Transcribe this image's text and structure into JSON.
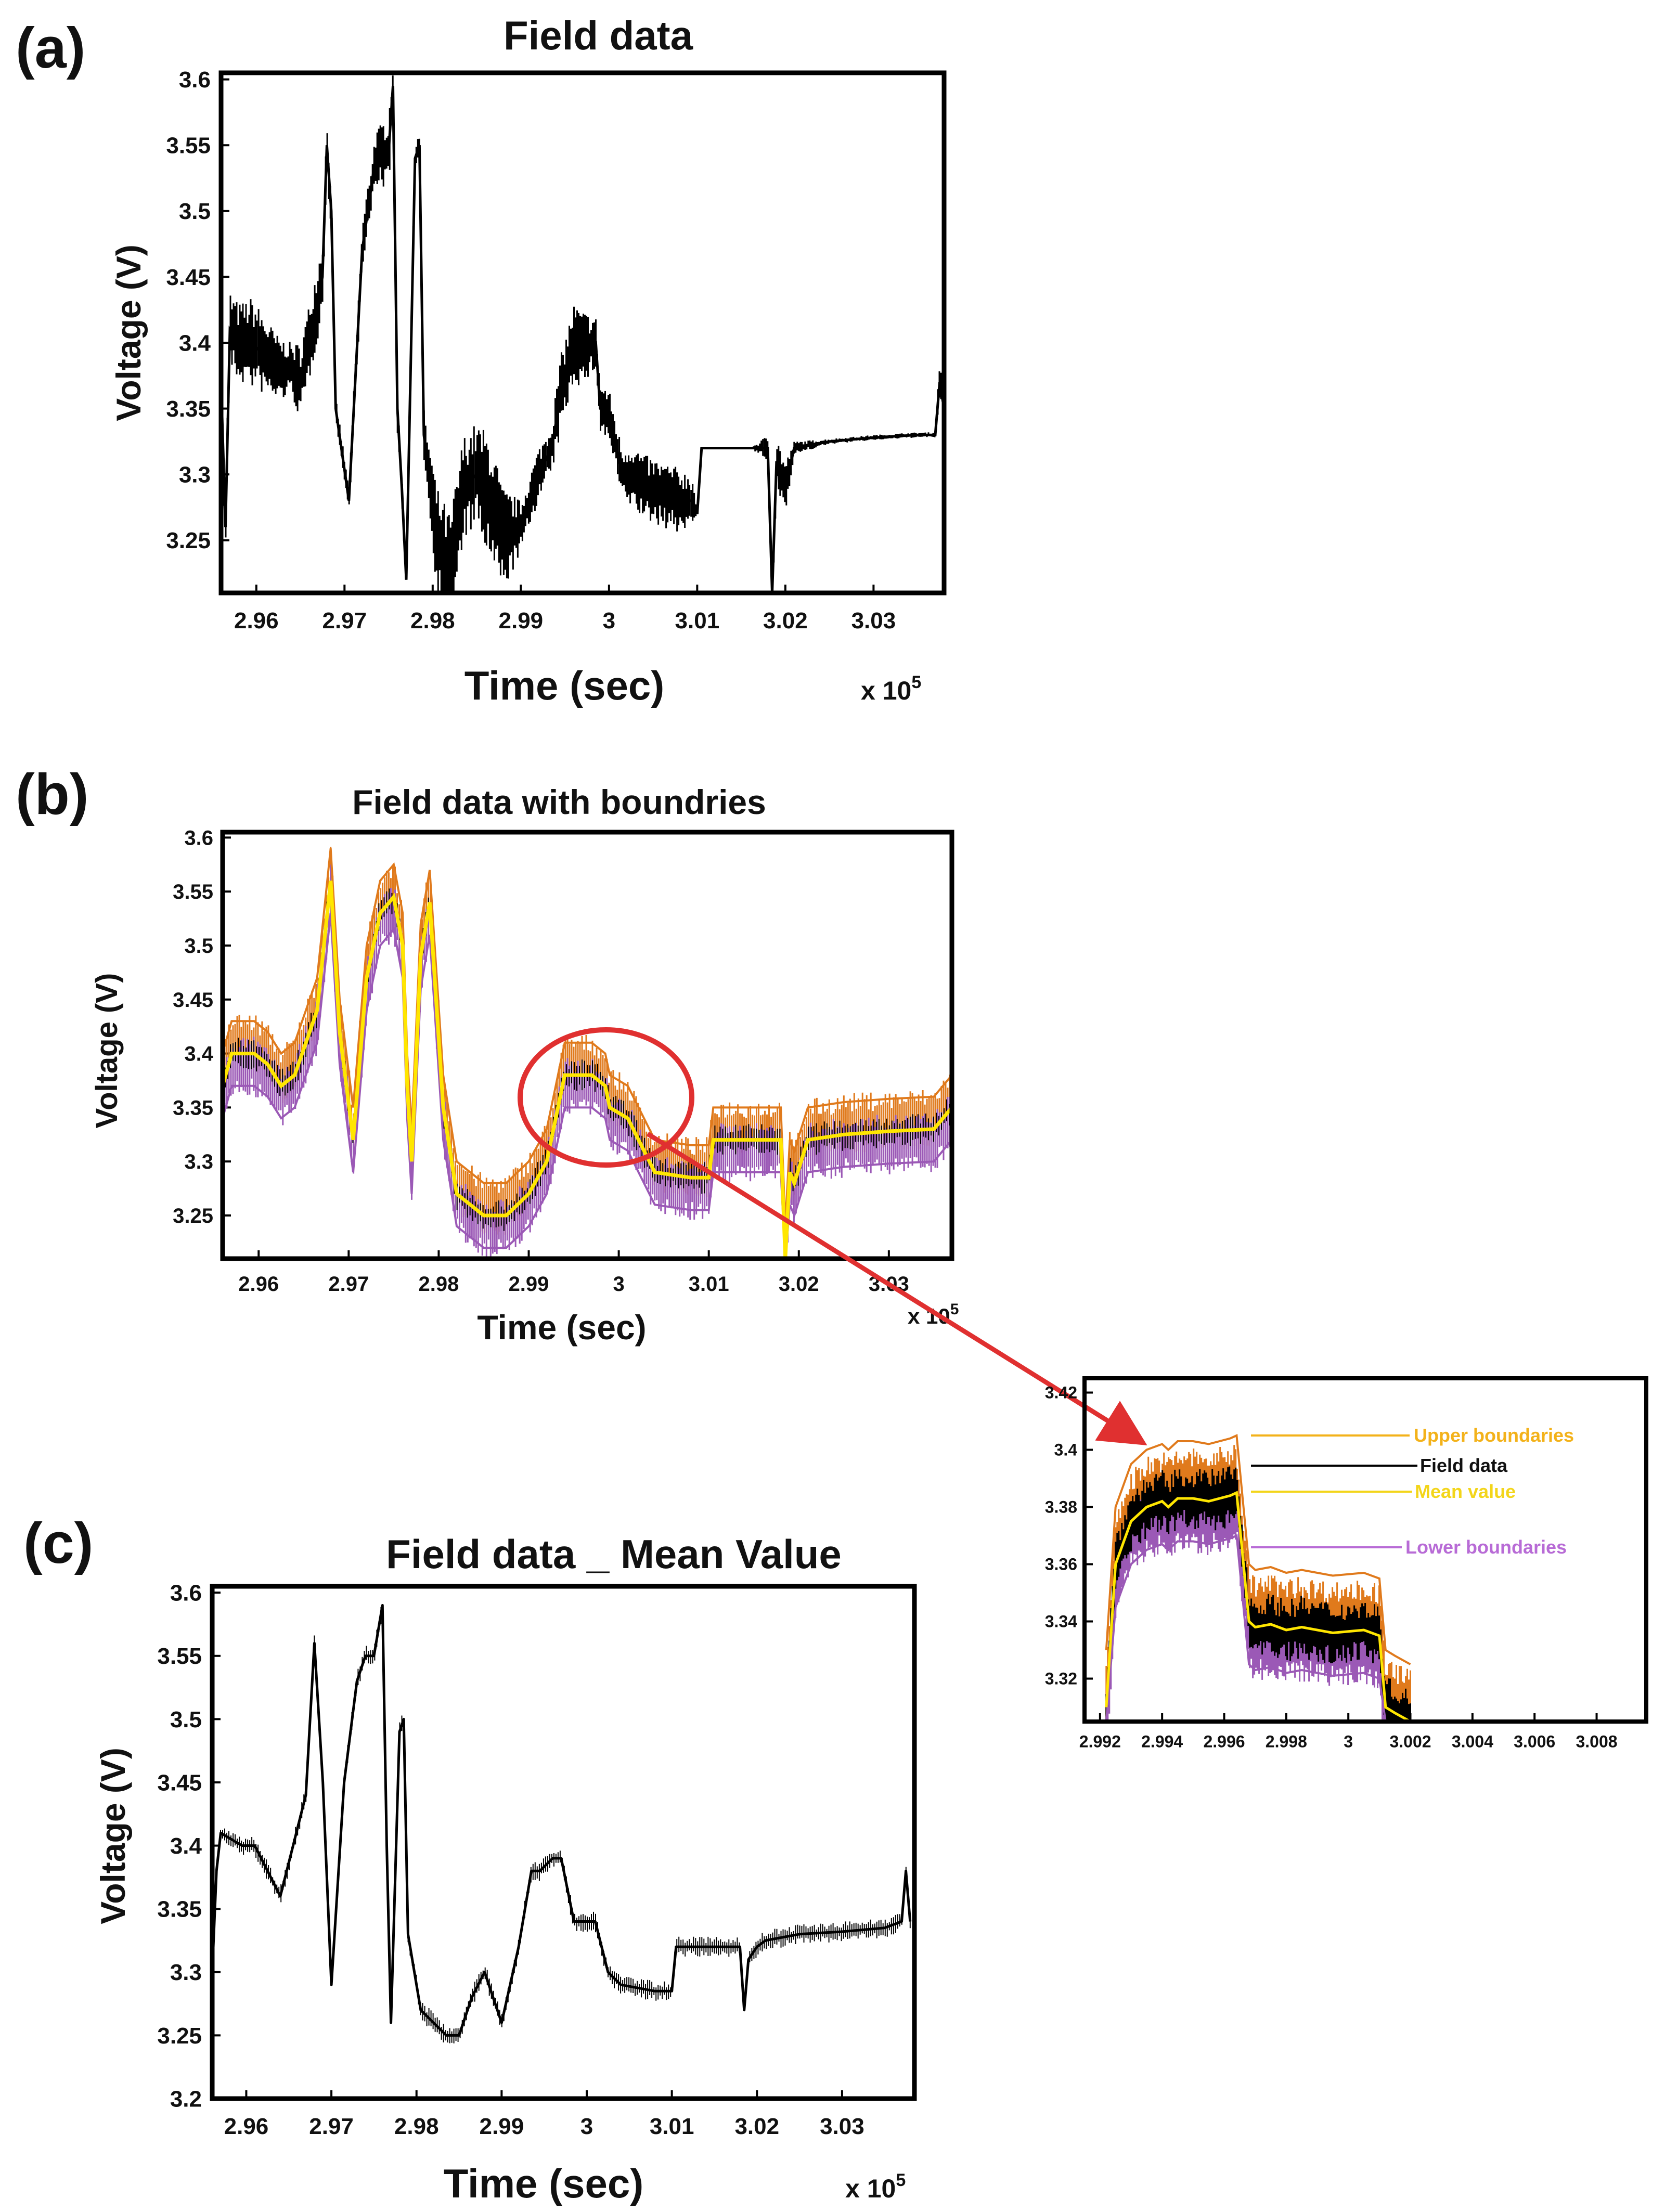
{
  "figure": {
    "panel_labels": [
      "(a)",
      "(b)",
      "(c)"
    ],
    "colors": {
      "field": "#000000",
      "upper": "#e07a1c",
      "lower": "#9b59b6",
      "mean": "#ffe600",
      "callout": "#e03030",
      "legend_upper": "#f3b21a",
      "legend_mean": "#f3d51a",
      "legend_lower": "#b86bd6"
    }
  },
  "chart_data": [
    {
      "id": "a",
      "type": "line",
      "title": "Field data",
      "xlabel": "Time (sec)",
      "ylabel": "Voltage (V)",
      "x_multiplier": "x 10",
      "x_multiplier_exp": "5",
      "xlim": [
        2.956,
        3.038
      ],
      "ylim": [
        3.21,
        3.605
      ],
      "xticks": [
        2.96,
        2.97,
        2.98,
        2.99,
        3.0,
        3.01,
        3.02,
        3.03
      ],
      "xtick_labels": [
        "2.96",
        "2.97",
        "2.98",
        "2.99",
        "3",
        "3.01",
        "3.02",
        "3.03"
      ],
      "yticks": [
        3.25,
        3.3,
        3.35,
        3.4,
        3.45,
        3.5,
        3.55,
        3.6
      ],
      "ytick_labels": [
        "3.25",
        "3.3",
        "3.35",
        "3.4",
        "3.45",
        "3.5",
        "3.55",
        "3.6"
      ],
      "series": [
        {
          "name": "Field data",
          "x": [
            2.956,
            2.9565,
            2.957,
            2.958,
            2.9595,
            2.961,
            2.9625,
            2.964,
            2.965,
            2.966,
            2.9675,
            2.968,
            2.9685,
            2.969,
            2.9705,
            2.972,
            2.9735,
            2.975,
            2.9755,
            2.976,
            2.9765,
            2.977,
            2.978,
            2.9785,
            2.979,
            2.9805,
            2.982,
            2.9835,
            2.985,
            2.9865,
            2.988,
            2.99,
            2.992,
            2.9935,
            2.9945,
            2.996,
            2.997,
            2.9985,
            2.999,
            3.0,
            3.0015,
            3.0025,
            3.004,
            3.006,
            3.008,
            3.0095,
            3.01,
            3.0105,
            3.0115,
            3.0135,
            3.016,
            3.018,
            3.0185,
            3.019,
            3.02,
            3.021,
            3.025,
            3.03,
            3.035,
            3.037,
            3.0375,
            3.038
          ],
          "y": [
            3.37,
            3.26,
            3.41,
            3.4,
            3.4,
            3.39,
            3.38,
            3.38,
            3.37,
            3.4,
            3.45,
            3.55,
            3.5,
            3.35,
            3.28,
            3.47,
            3.54,
            3.545,
            3.595,
            3.35,
            3.29,
            3.22,
            3.54,
            3.55,
            3.33,
            3.25,
            3.22,
            3.29,
            3.3,
            3.28,
            3.25,
            3.26,
            3.3,
            3.32,
            3.36,
            3.4,
            3.395,
            3.4,
            3.35,
            3.345,
            3.3,
            3.3,
            3.29,
            3.285,
            3.28,
            3.28,
            3.27,
            3.32,
            3.32,
            3.32,
            3.32,
            3.32,
            3.2,
            3.31,
            3.29,
            3.32,
            3.325,
            3.328,
            3.33,
            3.33,
            3.37,
            3.35
          ],
          "spread": [
            0.03,
            0.02,
            0.03,
            0.03,
            0.035,
            0.03,
            0.025,
            0.02,
            0.03,
            0.03,
            0.03,
            0.02,
            0.02,
            0.01,
            0.01,
            0.02,
            0.02,
            0.03,
            0.02,
            0.02,
            0.01,
            0.01,
            0.02,
            0.01,
            0.02,
            0.04,
            0.05,
            0.04,
            0.04,
            0.05,
            0.04,
            0.02,
            0.02,
            0.02,
            0.03,
            0.03,
            0.03,
            0.02,
            0.02,
            0.02,
            0.02,
            0.025,
            0.025,
            0.025,
            0.025,
            0.02,
            0.0,
            0.0,
            0.0,
            0.0,
            0.0,
            0.01,
            0.02,
            0.02,
            0.02,
            0.005,
            0.002,
            0.002,
            0.002,
            0.002,
            0.02,
            0.01
          ]
        }
      ]
    },
    {
      "id": "b",
      "type": "line",
      "title": "Field data with boundries",
      "xlabel": "Time (sec)",
      "ylabel": "Voltage (V)",
      "x_multiplier": "x 10",
      "x_multiplier_exp": "5",
      "xlim": [
        2.956,
        3.037
      ],
      "ylim": [
        3.21,
        3.605
      ],
      "xticks": [
        2.96,
        2.97,
        2.98,
        2.99,
        3.0,
        3.01,
        3.02,
        3.03
      ],
      "xtick_labels": [
        "2.96",
        "2.97",
        "2.98",
        "2.99",
        "3",
        "3.01",
        "3.02",
        "3.03"
      ],
      "yticks": [
        3.25,
        3.3,
        3.35,
        3.4,
        3.45,
        3.5,
        3.55,
        3.6
      ],
      "ytick_labels": [
        "3.25",
        "3.3",
        "3.35",
        "3.4",
        "3.45",
        "3.5",
        "3.55",
        "3.6"
      ],
      "series": [
        {
          "name": "Mean value",
          "x": [
            2.956,
            2.957,
            2.9595,
            2.961,
            2.9625,
            2.964,
            2.9665,
            2.968,
            2.969,
            2.9705,
            2.972,
            2.9735,
            2.975,
            2.976,
            2.9765,
            2.977,
            2.978,
            2.979,
            2.9805,
            2.982,
            2.985,
            2.9875,
            2.99,
            2.992,
            2.994,
            2.996,
            2.997,
            2.9985,
            2.999,
            3.001,
            3.004,
            3.008,
            3.01,
            3.0105,
            3.0135,
            3.016,
            3.018,
            3.0185,
            3.019,
            3.0195,
            3.021,
            3.025,
            3.03,
            3.035,
            3.037
          ],
          "y": [
            3.37,
            3.4,
            3.4,
            3.39,
            3.37,
            3.38,
            3.44,
            3.56,
            3.42,
            3.32,
            3.47,
            3.53,
            3.545,
            3.5,
            3.37,
            3.3,
            3.49,
            3.54,
            3.35,
            3.27,
            3.25,
            3.25,
            3.27,
            3.3,
            3.38,
            3.38,
            3.38,
            3.37,
            3.35,
            3.34,
            3.29,
            3.285,
            3.285,
            3.32,
            3.32,
            3.32,
            3.32,
            3.21,
            3.29,
            3.28,
            3.32,
            3.325,
            3.328,
            3.33,
            3.35
          ]
        },
        {
          "name": "Upper boundaries",
          "offset": 0.03
        },
        {
          "name": "Lower boundaries",
          "offset": -0.03
        }
      ]
    },
    {
      "id": "b-zoom",
      "type": "line",
      "title": "",
      "xlim": [
        2.9915,
        3.0096
      ],
      "ylim": [
        3.305,
        3.425
      ],
      "xticks": [
        2.992,
        2.994,
        2.996,
        2.998,
        3.0,
        3.002,
        3.004,
        3.006,
        3.008
      ],
      "xtick_labels": [
        "2.992",
        "2.994",
        "2.996",
        "2.998",
        "3",
        "3.002",
        "3.004",
        "3.006",
        "3.008"
      ],
      "yticks": [
        3.32,
        3.34,
        3.36,
        3.38,
        3.4,
        3.42
      ],
      "ytick_labels": [
        "3.32",
        "3.34",
        "3.36",
        "3.38",
        "3.4",
        "3.42"
      ],
      "legend": [
        "Upper boundaries",
        "Field data",
        "Mean value",
        "Lower boundaries"
      ],
      "series": [
        {
          "name": "Mean value",
          "x": [
            2.9922,
            2.9925,
            2.993,
            2.9935,
            2.994,
            2.9942,
            2.9945,
            2.995,
            2.9955,
            2.9962,
            2.9964,
            2.9968,
            2.997,
            2.9975,
            2.998,
            2.9985,
            2.9995,
            3.0005,
            3.001,
            3.0012,
            3.0015,
            3.002
          ],
          "y": [
            3.31,
            3.36,
            3.375,
            3.38,
            3.382,
            3.38,
            3.383,
            3.383,
            3.382,
            3.384,
            3.385,
            3.34,
            3.338,
            3.339,
            3.337,
            3.338,
            3.336,
            3.337,
            3.335,
            3.31,
            3.308,
            3.305
          ]
        },
        {
          "name": "Upper boundaries",
          "offset": 0.02
        },
        {
          "name": "Lower boundaries",
          "offset": -0.015
        }
      ]
    },
    {
      "id": "c",
      "type": "line",
      "title": "Field data _ Mean Value",
      "xlabel": "Time (sec)",
      "ylabel": "Voltage (V)",
      "x_multiplier": "x 10",
      "x_multiplier_exp": "5",
      "xlim": [
        2.956,
        3.0385
      ],
      "ylim": [
        3.2,
        3.605
      ],
      "xticks": [
        2.96,
        2.97,
        2.98,
        2.99,
        3.0,
        3.01,
        3.02,
        3.03
      ],
      "xtick_labels": [
        "2.96",
        "2.97",
        "2.98",
        "2.99",
        "3",
        "3.01",
        "3.02",
        "3.03"
      ],
      "yticks": [
        3.2,
        3.25,
        3.3,
        3.35,
        3.4,
        3.45,
        3.5,
        3.55,
        3.6
      ],
      "ytick_labels": [
        "3.2",
        "3.25",
        "3.3",
        "3.35",
        "3.4",
        "3.45",
        "3.5",
        "3.55",
        "3.6"
      ],
      "series": [
        {
          "name": "Field data _ Mean Value",
          "x": [
            2.956,
            2.9565,
            2.957,
            2.9595,
            2.961,
            2.9625,
            2.964,
            2.9655,
            2.967,
            2.968,
            2.969,
            2.97,
            2.9715,
            2.973,
            2.974,
            2.975,
            2.976,
            2.9765,
            2.977,
            2.978,
            2.9785,
            2.979,
            2.9805,
            2.982,
            2.9835,
            2.985,
            2.9865,
            2.988,
            2.99,
            2.992,
            2.9935,
            2.9945,
            2.996,
            2.997,
            2.9985,
            2.999,
            3.001,
            3.0025,
            3.004,
            3.008,
            3.0095,
            3.01,
            3.0105,
            3.0135,
            3.016,
            3.018,
            3.0185,
            3.019,
            3.02,
            3.021,
            3.025,
            3.03,
            3.035,
            3.037,
            3.0375,
            3.038
          ],
          "y": [
            3.3,
            3.38,
            3.41,
            3.4,
            3.4,
            3.38,
            3.36,
            3.4,
            3.44,
            3.56,
            3.45,
            3.29,
            3.45,
            3.53,
            3.55,
            3.55,
            3.59,
            3.4,
            3.26,
            3.49,
            3.5,
            3.33,
            3.27,
            3.26,
            3.25,
            3.25,
            3.28,
            3.3,
            3.26,
            3.32,
            3.38,
            3.38,
            3.39,
            3.39,
            3.34,
            3.34,
            3.34,
            3.3,
            3.29,
            3.285,
            3.285,
            3.285,
            3.32,
            3.32,
            3.32,
            3.32,
            3.27,
            3.31,
            3.32,
            3.325,
            3.33,
            3.332,
            3.335,
            3.34,
            3.38,
            3.34
          ]
        }
      ]
    }
  ]
}
